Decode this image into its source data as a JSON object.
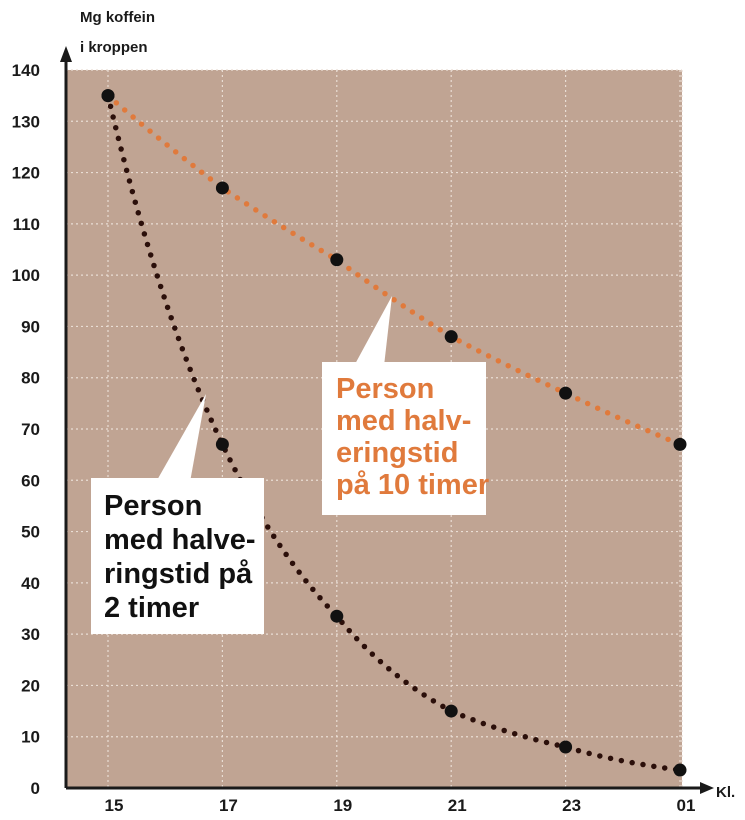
{
  "chart_data": {
    "type": "scatter",
    "title": "",
    "ylabel_lines": [
      "Mg koffein",
      "i kroppen"
    ],
    "xlabel": "Kl.",
    "x_categories": [
      "15",
      "17",
      "19",
      "21",
      "23",
      "01"
    ],
    "y_ticks": [
      "0",
      "10",
      "20",
      "30",
      "40",
      "50",
      "60",
      "70",
      "80",
      "90",
      "100",
      "110",
      "120",
      "130",
      "140"
    ],
    "ylim": [
      0,
      140
    ],
    "grid": true,
    "background": "#c0a493",
    "series": [
      {
        "label_lines": [
          "Person",
          "med halv-",
          "eringstid",
          "på 10 timer"
        ],
        "color": "#e07a3c",
        "text_color": "#e07a3c",
        "points": [
          135,
          117,
          103,
          88,
          77,
          67
        ],
        "curve": "exponential-decay"
      },
      {
        "label_lines": [
          "Person",
          "med halve-",
          "ringstid på",
          "2 timer"
        ],
        "color": "#2b0f0a",
        "text_color": "#111111",
        "points": [
          135,
          67,
          33.5,
          15,
          8,
          3.5
        ],
        "curve": "exponential-decay"
      }
    ],
    "point_color": "#111111"
  }
}
